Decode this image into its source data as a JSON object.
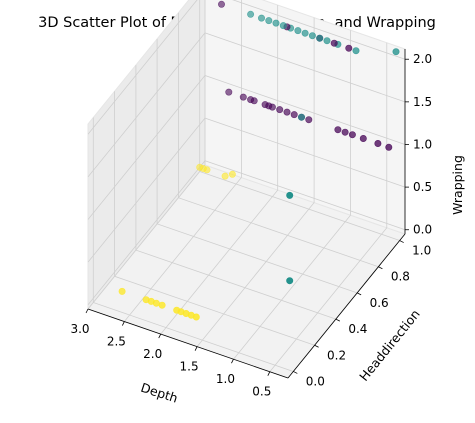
{
  "chart_data": {
    "type": "scatter",
    "title": "3D Scatter Plot of Depth, Headdirection, and Wrapping",
    "xlabel": "Depth",
    "ylabel": "Headdirection",
    "zlabel": "Wrapping",
    "xlim": [
      0.25,
      3.0
    ],
    "ylim": [
      -0.05,
      1.05
    ],
    "zlim": [
      -0.05,
      2.12
    ],
    "xticks": [
      "0.5",
      "1.0",
      "1.5",
      "2.0",
      "2.5",
      "3.0"
    ],
    "yticks": [
      "0.0",
      "0.2",
      "0.4",
      "0.6",
      "0.8",
      "1.0"
    ],
    "zticks": [
      "0.0",
      "0.5",
      "1.0",
      "1.5",
      "2.0"
    ],
    "grid": true,
    "colormap": {
      "0": "#fde725",
      "1": "#440154",
      "2": "#21918c"
    },
    "points": [
      {
        "x": 1.73,
        "y": 0.1,
        "z": 0
      },
      {
        "x": 1.8,
        "y": 0.1,
        "z": 0
      },
      {
        "x": 1.87,
        "y": 0.1,
        "z": 0
      },
      {
        "x": 1.94,
        "y": 0.1,
        "z": 0
      },
      {
        "x": 2.0,
        "y": 0.1,
        "z": 0
      },
      {
        "x": 2.2,
        "y": 0.1,
        "z": 0
      },
      {
        "x": 2.28,
        "y": 0.1,
        "z": 0
      },
      {
        "x": 2.35,
        "y": 0.1,
        "z": 0
      },
      {
        "x": 2.42,
        "y": 0.1,
        "z": 0
      },
      {
        "x": 2.75,
        "y": 0.1,
        "z": 0
      },
      {
        "x": 2.9,
        "y": 1.0,
        "z": 0
      },
      {
        "x": 2.95,
        "y": 1.0,
        "z": 0
      },
      {
        "x": 3.0,
        "y": 1.0,
        "z": 0
      },
      {
        "x": 2.65,
        "y": 1.0,
        "z": 0
      },
      {
        "x": 2.55,
        "y": 1.0,
        "z": 0.05
      },
      {
        "x": 0.4,
        "y": 1.0,
        "z": 1.0
      },
      {
        "x": 0.55,
        "y": 1.0,
        "z": 1.0
      },
      {
        "x": 0.75,
        "y": 1.0,
        "z": 1.0
      },
      {
        "x": 0.9,
        "y": 1.0,
        "z": 1.0
      },
      {
        "x": 1.0,
        "y": 1.0,
        "z": 1.0
      },
      {
        "x": 1.1,
        "y": 1.0,
        "z": 1.0
      },
      {
        "x": 1.5,
        "y": 1.0,
        "z": 1.0
      },
      {
        "x": 1.6,
        "y": 1.0,
        "z": 1.0
      },
      {
        "x": 1.7,
        "y": 1.0,
        "z": 1.0
      },
      {
        "x": 1.8,
        "y": 1.0,
        "z": 1.0
      },
      {
        "x": 1.9,
        "y": 1.0,
        "z": 1.0
      },
      {
        "x": 2.0,
        "y": 1.0,
        "z": 1.0
      },
      {
        "x": 2.05,
        "y": 1.0,
        "z": 1.0
      },
      {
        "x": 2.1,
        "y": 1.0,
        "z": 1.0
      },
      {
        "x": 2.25,
        "y": 1.0,
        "z": 1.0
      },
      {
        "x": 2.3,
        "y": 1.0,
        "z": 1.0
      },
      {
        "x": 2.4,
        "y": 1.0,
        "z": 1.0
      },
      {
        "x": 2.6,
        "y": 1.0,
        "z": 1.0
      },
      {
        "x": 0.95,
        "y": 1.0,
        "z": 2.0
      },
      {
        "x": 1.15,
        "y": 1.0,
        "z": 2.0
      },
      {
        "x": 1.35,
        "y": 1.0,
        "z": 2.0
      },
      {
        "x": 1.8,
        "y": 1.0,
        "z": 2.0
      },
      {
        "x": 2.7,
        "y": 1.0,
        "z": 2.0
      },
      {
        "x": 0.3,
        "y": 0.0,
        "z": 1.0
      },
      {
        "x": 0.3,
        "y": 0.0,
        "z": 2.0
      },
      {
        "x": 0.3,
        "y": 1.0,
        "z": 2.15
      },
      {
        "x": 0.85,
        "y": 1.0,
        "z": 2.0
      },
      {
        "x": 1.1,
        "y": 1.0,
        "z": 2.0
      },
      {
        "x": 1.25,
        "y": 1.0,
        "z": 2.0
      },
      {
        "x": 1.35,
        "y": 1.0,
        "z": 2.0
      },
      {
        "x": 1.45,
        "y": 1.0,
        "z": 2.0
      },
      {
        "x": 1.55,
        "y": 1.0,
        "z": 2.0
      },
      {
        "x": 1.65,
        "y": 1.0,
        "z": 2.0
      },
      {
        "x": 1.75,
        "y": 1.0,
        "z": 2.0
      },
      {
        "x": 1.85,
        "y": 1.0,
        "z": 2.0
      },
      {
        "x": 1.95,
        "y": 1.0,
        "z": 2.0
      },
      {
        "x": 2.05,
        "y": 1.0,
        "z": 2.0
      },
      {
        "x": 2.15,
        "y": 1.0,
        "z": 2.0
      },
      {
        "x": 2.3,
        "y": 1.0,
        "z": 2.0
      },
      {
        "x": 1.6,
        "y": 1.0,
        "z": 1.0
      }
    ],
    "point_colors": [
      0,
      0,
      0,
      0,
      0,
      0,
      0,
      0,
      0,
      0,
      0,
      0,
      0,
      0,
      0,
      1,
      1,
      1,
      1,
      1,
      1,
      1,
      1,
      1,
      1,
      1,
      1,
      1,
      1,
      1,
      1,
      1,
      1,
      1,
      1,
      1,
      1,
      1,
      2,
      2,
      2,
      2,
      2,
      2,
      2,
      2,
      2,
      2,
      2,
      2,
      2,
      2,
      2,
      2,
      2
    ]
  }
}
